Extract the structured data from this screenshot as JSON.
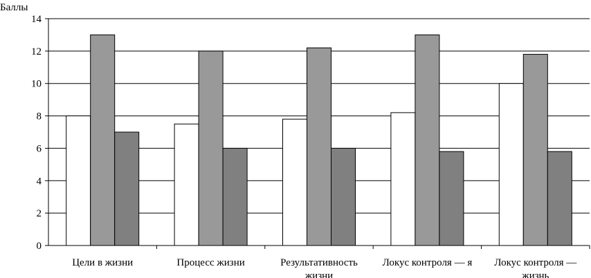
{
  "chart_data": {
    "type": "bar",
    "ylabel": "Баллы",
    "xlabel": "",
    "ylim": [
      0,
      14
    ],
    "yticks": [
      0,
      2,
      4,
      6,
      8,
      10,
      12,
      14
    ],
    "grid": true,
    "categories": [
      [
        "Цели в жизни"
      ],
      [
        "Процесс жизни"
      ],
      [
        "Результативность",
        "жизни"
      ],
      [
        "Локус контроля — я"
      ],
      [
        "Локус контроля —",
        "жизнь"
      ]
    ],
    "series": [
      {
        "values": [
          8,
          7.5,
          7.8,
          8.2,
          10
        ],
        "color": "#ffffff"
      },
      {
        "values": [
          13,
          12,
          12.2,
          13,
          11.8
        ],
        "color": "#999999"
      },
      {
        "values": [
          7,
          6,
          6,
          5.8,
          5.8
        ],
        "color": "#808080"
      }
    ]
  }
}
